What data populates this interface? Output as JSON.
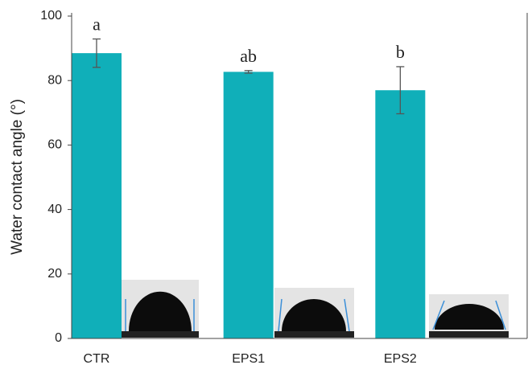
{
  "chart_data": {
    "type": "bar",
    "y_label": "Water contact angle (°)",
    "categories": [
      "CTR",
      "EPS1",
      "EPS2"
    ],
    "values": [
      88.5,
      82.7,
      77.0
    ],
    "errors": [
      4.4,
      0.4,
      7.3
    ],
    "annotations": [
      "a",
      "ab",
      "b"
    ],
    "color": "#10afb9",
    "ylim": [
      0,
      100
    ],
    "yticks": [
      0,
      20,
      40,
      60,
      80,
      100
    ],
    "grid": false
  }
}
